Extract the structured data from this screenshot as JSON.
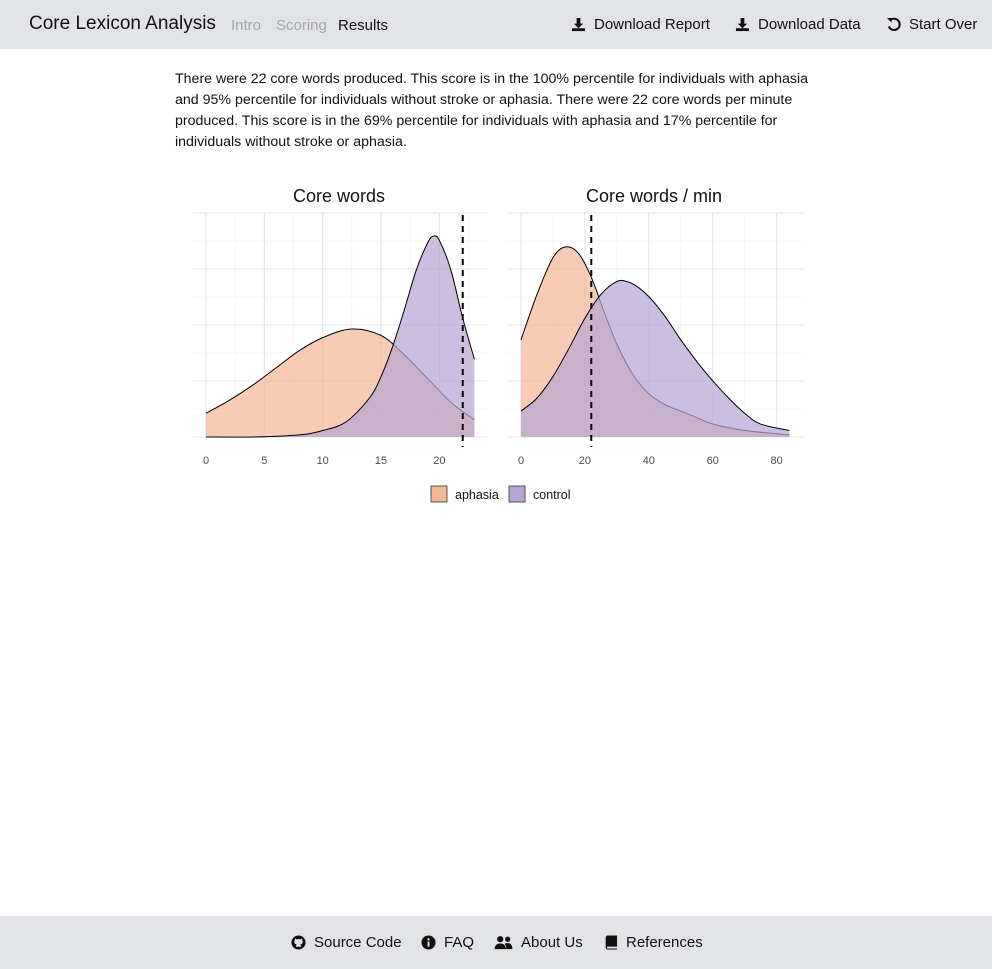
{
  "app": {
    "title": "Core Lexicon Analysis"
  },
  "nav": {
    "links": [
      {
        "label": "Intro",
        "state": "muted"
      },
      {
        "label": "Scoring",
        "state": "muted"
      },
      {
        "label": "Results",
        "state": "active"
      }
    ],
    "actions": [
      {
        "label": "Download Report",
        "icon": "download-icon"
      },
      {
        "label": "Download Data",
        "icon": "download-icon"
      },
      {
        "label": "Start Over",
        "icon": "undo-icon"
      }
    ]
  },
  "summary": {
    "text": "There were 22 core words produced. This score is in the 100% percentile for individuals with aphasia and 95% percentile for individuals without stroke or aphasia. There were 22 core words per minute produced. This score is in the 69% percentile for individuals with aphasia and 17% percentile for individuals without stroke or aphasia."
  },
  "chart_data": [
    {
      "type": "area",
      "title": "Core words",
      "xlabel": "",
      "ylabel": "",
      "x_ticks": [
        0,
        5,
        10,
        15,
        20
      ],
      "xlim": [
        0,
        23
      ],
      "grid": true,
      "series": [
        {
          "name": "aphasia",
          "color": "#f4b797",
          "x": [
            0,
            2,
            4,
            6,
            8,
            10,
            12.5,
            15,
            17,
            19,
            21,
            23
          ],
          "values": [
            0.11,
            0.17,
            0.24,
            0.32,
            0.4,
            0.46,
            0.5,
            0.47,
            0.38,
            0.27,
            0.16,
            0.08
          ]
        },
        {
          "name": "control",
          "color": "#b7a5d4",
          "x": [
            0,
            4,
            8,
            10,
            12,
            14,
            15,
            16,
            17,
            18,
            19,
            19.5,
            20,
            21,
            22,
            23
          ],
          "values": [
            0.0,
            0.0,
            0.01,
            0.03,
            0.07,
            0.18,
            0.28,
            0.42,
            0.59,
            0.77,
            0.9,
            0.93,
            0.91,
            0.77,
            0.55,
            0.36
          ]
        }
      ],
      "reference_line": {
        "x": 22,
        "style": "dashed"
      }
    },
    {
      "type": "area",
      "title": "Core words / min",
      "xlabel": "",
      "ylabel": "",
      "x_ticks": [
        0,
        20,
        40,
        60,
        80
      ],
      "xlim": [
        0,
        84
      ],
      "grid": true,
      "series": [
        {
          "name": "aphasia",
          "color": "#f4b797",
          "x": [
            0,
            5,
            10,
            14,
            18,
            22,
            26,
            30,
            35,
            40,
            45,
            50,
            55,
            60,
            70,
            84
          ],
          "values": [
            0.45,
            0.66,
            0.83,
            0.88,
            0.85,
            0.74,
            0.58,
            0.43,
            0.29,
            0.2,
            0.15,
            0.12,
            0.09,
            0.06,
            0.03,
            0.01
          ]
        },
        {
          "name": "control",
          "color": "#b7a5d4",
          "x": [
            0,
            5,
            10,
            15,
            20,
            25,
            30,
            33,
            36,
            40,
            45,
            50,
            55,
            60,
            65,
            70,
            75,
            84
          ],
          "values": [
            0.12,
            0.18,
            0.28,
            0.41,
            0.55,
            0.66,
            0.72,
            0.72,
            0.7,
            0.65,
            0.56,
            0.45,
            0.35,
            0.26,
            0.18,
            0.11,
            0.06,
            0.03
          ]
        }
      ],
      "reference_line": {
        "x": 22,
        "style": "dashed"
      }
    }
  ],
  "legend": {
    "items": [
      {
        "label": "aphasia",
        "color": "#f4b797"
      },
      {
        "label": "control",
        "color": "#b7a5d4"
      }
    ]
  },
  "footer": {
    "links": [
      {
        "label": "Source Code",
        "icon": "github-icon"
      },
      {
        "label": "FAQ",
        "icon": "info-icon"
      },
      {
        "label": "About Us",
        "icon": "users-icon"
      },
      {
        "label": "References",
        "icon": "book-icon"
      }
    ]
  }
}
